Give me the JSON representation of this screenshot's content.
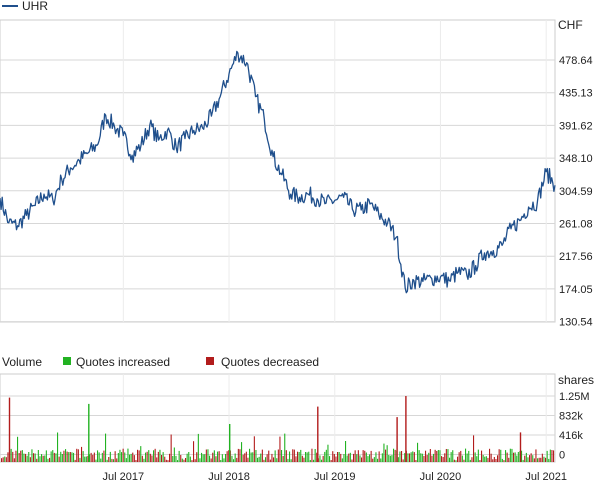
{
  "chart_data": [
    {
      "type": "line",
      "legend": [
        {
          "name": "UHR",
          "color": "#1f4f8c"
        }
      ],
      "unit": "CHF",
      "y_ticks": [
        "478.64",
        "435.13",
        "391.62",
        "348.10",
        "304.59",
        "261.08",
        "217.56",
        "174.05",
        "130.54"
      ],
      "ylim": [
        130.54,
        500
      ],
      "x_range": [
        "2016-05",
        "2021-08"
      ],
      "grid": true,
      "series": [
        {
          "name": "UHR",
          "color": "#1f4f8c",
          "x": [
            "2016-05",
            "2016-06",
            "2016-07",
            "2016-08",
            "2016-09",
            "2016-10",
            "2016-11",
            "2016-12",
            "2017-01",
            "2017-02",
            "2017-03",
            "2017-04",
            "2017-05",
            "2017-06",
            "2017-07",
            "2017-08",
            "2017-09",
            "2017-10",
            "2017-11",
            "2017-12",
            "2018-01",
            "2018-02",
            "2018-03",
            "2018-04",
            "2018-05",
            "2018-06",
            "2018-07",
            "2018-08",
            "2018-09",
            "2018-10",
            "2018-11",
            "2018-12",
            "2019-01",
            "2019-02",
            "2019-03",
            "2019-04",
            "2019-05",
            "2019-06",
            "2019-07",
            "2019-08",
            "2019-09",
            "2019-10",
            "2019-11",
            "2019-12",
            "2020-01",
            "2020-02",
            "2020-03",
            "2020-04",
            "2020-05",
            "2020-06",
            "2020-07",
            "2020-08",
            "2020-09",
            "2020-10",
            "2020-11",
            "2020-12",
            "2021-01",
            "2021-02",
            "2021-03",
            "2021-04",
            "2021-05",
            "2021-06",
            "2021-07",
            "2021-08"
          ],
          "values": [
            295,
            262,
            258,
            272,
            285,
            300,
            292,
            320,
            335,
            345,
            355,
            365,
            405,
            390,
            378,
            352,
            365,
            392,
            372,
            385,
            362,
            374,
            385,
            388,
            404,
            430,
            460,
            488,
            475,
            430,
            400,
            350,
            326,
            300,
            296,
            300,
            294,
            288,
            292,
            296,
            280,
            279,
            287,
            273,
            262,
            243,
            175,
            185,
            184,
            188,
            190,
            185,
            196,
            192,
            205,
            222,
            225,
            232,
            254,
            265,
            283,
            290,
            330,
            312
          ]
        }
      ]
    },
    {
      "type": "bar",
      "title": "Volume",
      "legend": [
        {
          "name": "Quotes increased",
          "color": "#22b222"
        },
        {
          "name": "Quotes decreased",
          "color": "#b21c1c"
        }
      ],
      "unit": "shares",
      "y_ticks": [
        "1.25M",
        "832k",
        "416k",
        "0"
      ],
      "ylim": [
        0,
        1250000
      ],
      "x_ticks": [
        "Jul 2017",
        "Jul 2018",
        "Jul 2019",
        "Jul 2020",
        "Jul 2021"
      ],
      "grid": true,
      "series": [
        {
          "name": "Quotes increased",
          "color": "#22b222",
          "typical_volume": 170000
        },
        {
          "name": "Quotes decreased",
          "color": "#b21c1c",
          "typical_volume": 170000
        }
      ],
      "peaks": [
        {
          "x": "2016-06",
          "value": 1220000,
          "direction": "decreased"
        },
        {
          "x": "2017-03",
          "value": 1100000,
          "direction": "increased"
        },
        {
          "x": "2019-05",
          "value": 1050000,
          "direction": "decreased"
        },
        {
          "x": "2020-03",
          "value": 1250000,
          "direction": "decreased"
        },
        {
          "x": "2020-02",
          "value": 850000,
          "direction": "decreased"
        },
        {
          "x": "2018-07",
          "value": 720000,
          "direction": "increased"
        },
        {
          "x": "2021-04",
          "value": 560000,
          "direction": "decreased"
        }
      ]
    }
  ]
}
